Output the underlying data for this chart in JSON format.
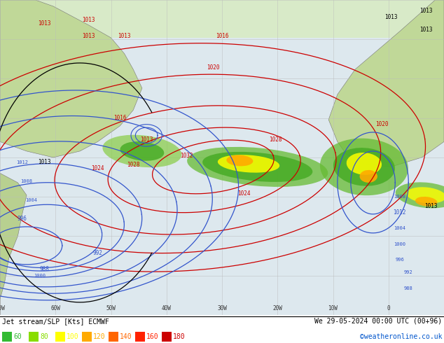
{
  "title_left": "Jet stream/SLP [Kts] ECMWF",
  "title_right": "We 29-05-2024 00:00 UTC (00+96)",
  "credit": "©weatheronline.co.uk",
  "legend_values": [
    60,
    80,
    100,
    120,
    140,
    160,
    180
  ],
  "legend_colors": [
    "#33bb33",
    "#88dd00",
    "#ffff00",
    "#ffaa00",
    "#ff6600",
    "#ff2200",
    "#cc0000"
  ],
  "figsize": [
    6.34,
    4.9
  ],
  "dpi": 100,
  "map_bg_ocean": "#d8e8f0",
  "map_bg_land": "#c8e0b0",
  "map_bg_top": "#e0ede0",
  "contour_red": "#cc0000",
  "contour_blue": "#3355cc",
  "contour_black": "#000000",
  "jet_green_light": "#88cc44",
  "jet_green_dark": "#339922",
  "jet_yellow": "#ffff00",
  "jet_orange": "#ffaa00",
  "jet_red": "#ff4400",
  "grid_color": "#bbbbbb",
  "land_edge": "#888888",
  "bottom_bg": "#ffffff",
  "bottom_text": "#000000",
  "credit_color": "#0055cc"
}
